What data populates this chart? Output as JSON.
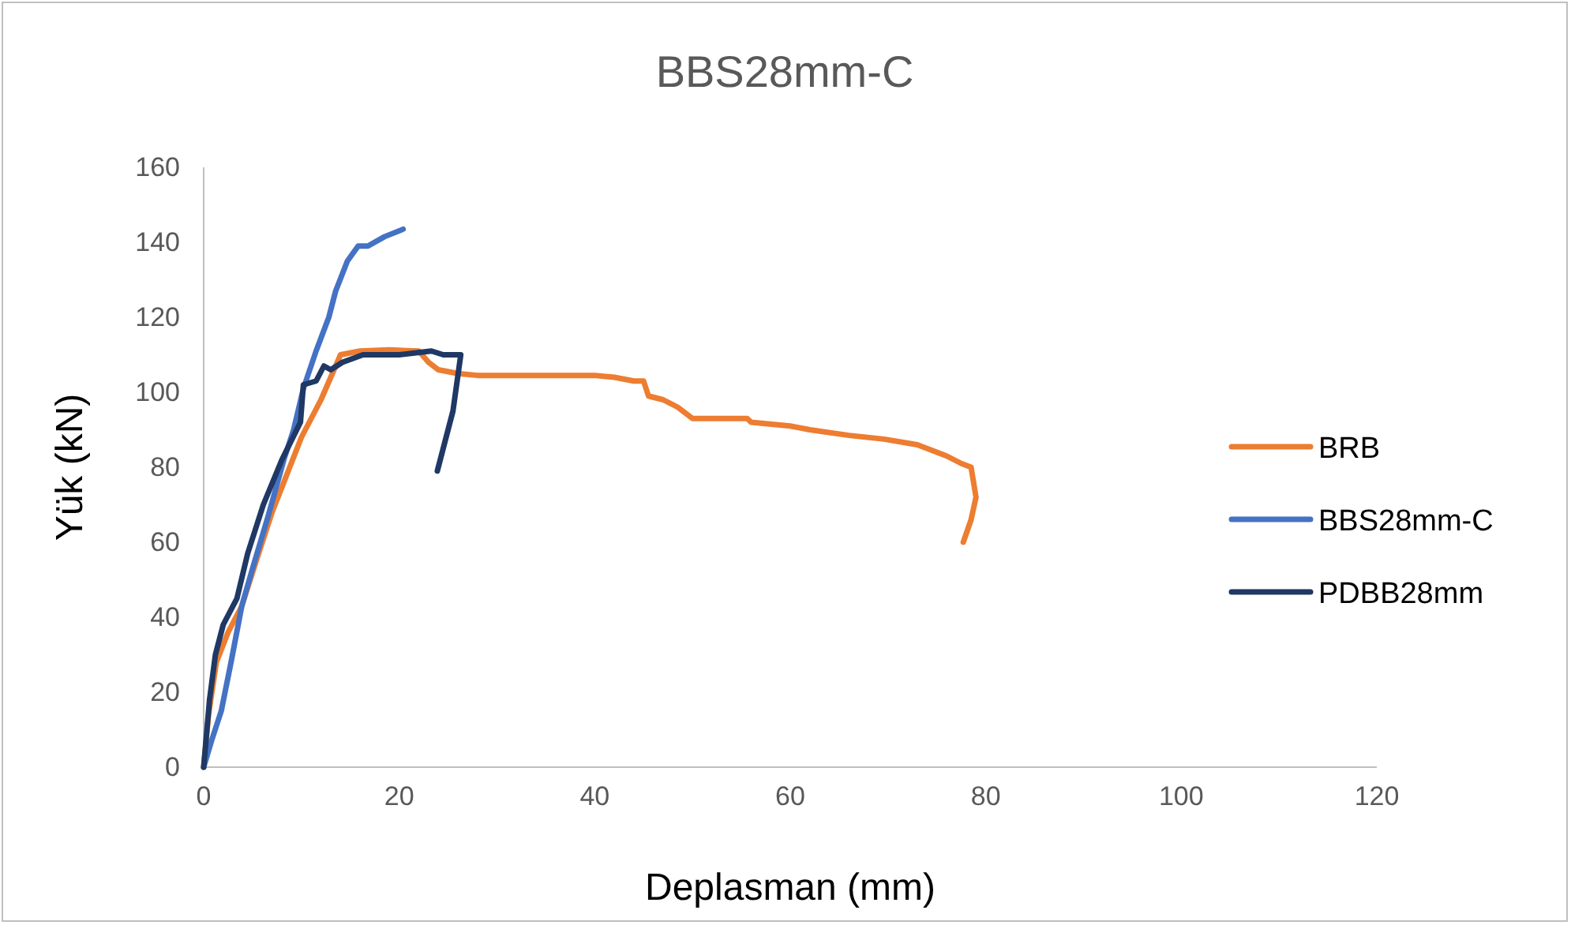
{
  "chart_data": {
    "type": "line",
    "title": "BBS28mm-C",
    "xlabel": "Deplasman (mm)",
    "ylabel": "Yük (kN)",
    "xlim": [
      0,
      120
    ],
    "xticks": [
      0,
      20,
      40,
      60,
      80,
      100,
      120
    ],
    "ylim": [
      0,
      160
    ],
    "yticks": [
      0,
      20,
      40,
      60,
      80,
      100,
      120,
      140,
      160
    ],
    "grid": false,
    "legend": "right",
    "marker": "none",
    "line_style": "solid",
    "series": [
      {
        "name": "BRB",
        "color": "#ed7d31",
        "x": [
          0,
          0.5,
          1.3,
          2.5,
          3.9,
          5.5,
          7,
          8.5,
          10,
          11,
          12,
          13,
          14,
          16,
          19,
          22,
          23,
          24,
          26,
          28,
          32,
          36,
          40,
          42,
          44,
          45,
          45.5,
          47,
          48.5,
          50,
          55.6,
          56,
          60,
          62,
          66,
          69.6,
          73,
          76,
          77.5,
          78.5,
          79,
          78.5,
          77.7
        ],
        "values": [
          0,
          14,
          28,
          36,
          43,
          56,
          68,
          78,
          88,
          93,
          98,
          104,
          110,
          111,
          111.3,
          111,
          108,
          106,
          105,
          104.5,
          104.5,
          104.5,
          104.5,
          104,
          103,
          103,
          99,
          98,
          96,
          93,
          93,
          92,
          91,
          90,
          88.5,
          87.5,
          86,
          83,
          81,
          80,
          72,
          66,
          60
        ]
      },
      {
        "name": "BBS28mm-C",
        "color": "#4472c4",
        "x": [
          0,
          0.8,
          1.8,
          2.8,
          3.9,
          5,
          6.6,
          8.2,
          9.2,
          10.2,
          11.5,
          12.8,
          13.5,
          14.7,
          15.8,
          16.8,
          18.5,
          20.4
        ],
        "values": [
          0,
          7,
          15,
          28,
          43,
          53,
          67,
          82,
          90,
          101,
          111,
          120,
          127,
          135,
          139,
          139,
          141.5,
          143.5
        ]
      },
      {
        "name": "PDBB28mm",
        "color": "#1f3864",
        "x": [
          0,
          0.6,
          1.2,
          2,
          3.4,
          4.5,
          6.1,
          8,
          9.9,
          10.2,
          11.5,
          12.3,
          13,
          14.2,
          16.3,
          20,
          23.3,
          24.5,
          26.3,
          25.5,
          24.5,
          23.9
        ],
        "values": [
          0,
          18,
          30,
          38,
          45,
          57,
          70,
          82,
          92,
          102,
          103,
          107,
          106,
          108,
          110,
          110,
          111,
          110,
          110,
          95,
          85,
          79
        ]
      }
    ]
  }
}
